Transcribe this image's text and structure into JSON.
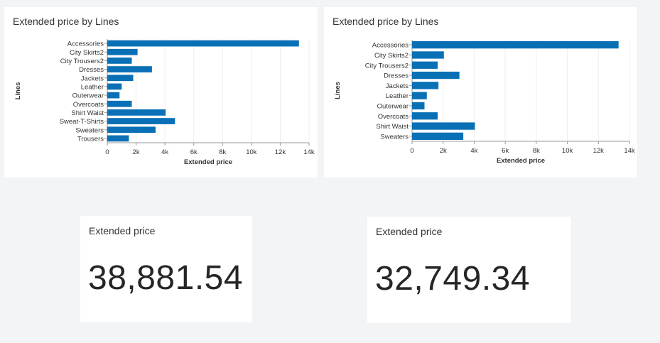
{
  "charts": [
    {
      "title": "Extended price by Lines",
      "chart_data": {
        "type": "bar",
        "orientation": "horizontal",
        "title": "Extended price by Lines",
        "xlabel": "Extended price",
        "ylabel": "Lines",
        "xlim": [
          0,
          14000
        ],
        "xticks": [
          "0",
          "2k",
          "4k",
          "6k",
          "8k",
          "10k",
          "12k",
          "14k"
        ],
        "grid": true,
        "bar_color": "#0a70b6",
        "categories": [
          "Accessories",
          "City Skirts2",
          "City Trousers2",
          "Dresses",
          "Jackets",
          "Leather",
          "Outerwear",
          "Overcoats",
          "Shirt Waist",
          "Sweat-T-Shirts",
          "Sweaters",
          "Trousers"
        ],
        "values": [
          13300,
          2100,
          1700,
          3100,
          1800,
          1000,
          850,
          1700,
          4050,
          4700,
          3350,
          1500
        ]
      }
    },
    {
      "title": "Extended price by Lines",
      "chart_data": {
        "type": "bar",
        "orientation": "horizontal",
        "title": "Extended price by Lines",
        "xlabel": "Extended price",
        "ylabel": "Lines",
        "xlim": [
          0,
          14000
        ],
        "xticks": [
          "0",
          "2k",
          "4k",
          "6k",
          "8k",
          "10k",
          "12k",
          "14k"
        ],
        "grid": true,
        "bar_color": "#0a70b6",
        "categories": [
          "Accessories",
          "City Skirts2",
          "City Trousers2",
          "Dresses",
          "Jackets",
          "Leather",
          "Outerwear",
          "Overcoats",
          "Shirt Waist",
          "Sweaters"
        ],
        "values": [
          13300,
          2050,
          1650,
          3050,
          1700,
          950,
          800,
          1650,
          4050,
          3300
        ]
      }
    }
  ],
  "kpis": [
    {
      "label": "Extended price",
      "value": "38,881.54"
    },
    {
      "label": "Extended price",
      "value": "32,749.34"
    }
  ]
}
